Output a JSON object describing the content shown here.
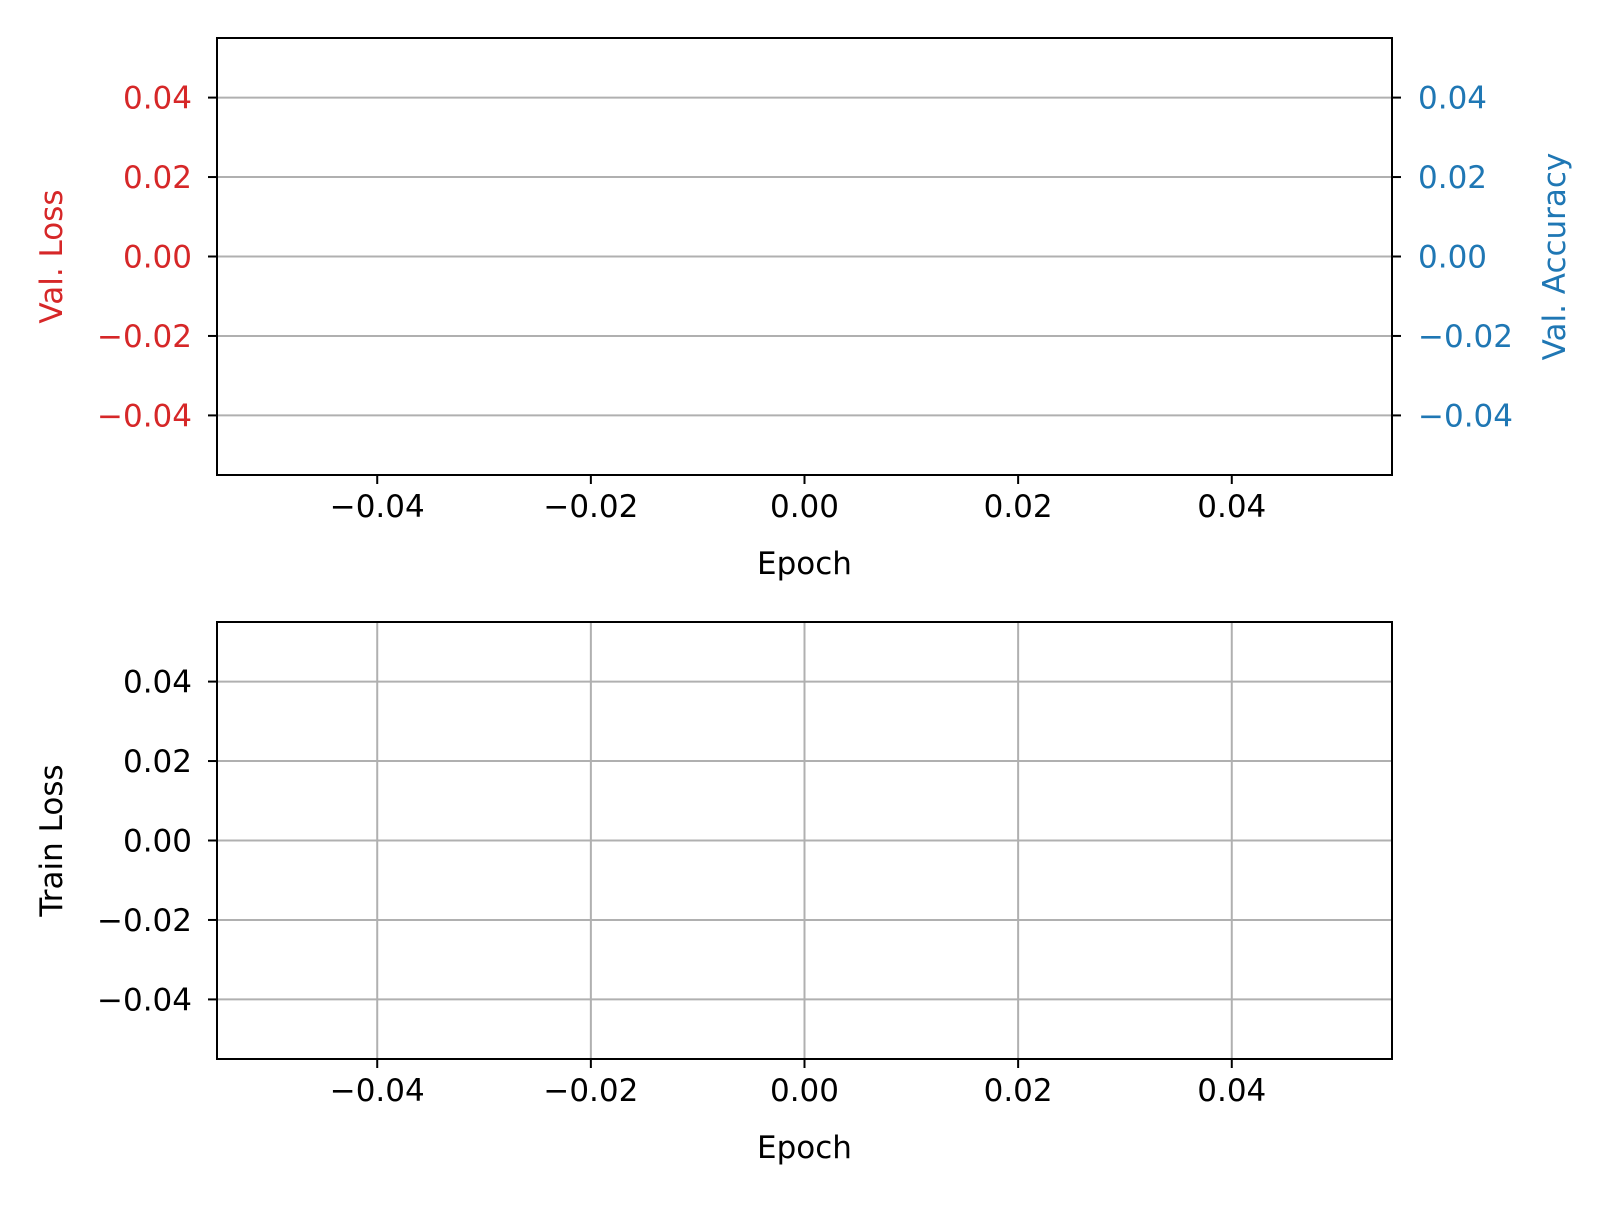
{
  "chart_data": [
    {
      "type": "line",
      "title": "",
      "xlabel": "Epoch",
      "ylabel": "Val. Loss",
      "ylabel_right": "Val. Accuracy",
      "xlim": [
        -0.055,
        0.055
      ],
      "ylim": [
        -0.055,
        0.055
      ],
      "ylim_right": [
        -0.055,
        0.055
      ],
      "x_ticks": [
        -0.04,
        -0.02,
        0.0,
        0.02,
        0.04
      ],
      "x_tick_labels": [
        "−0.04",
        "−0.02",
        "0.00",
        "0.02",
        "0.04"
      ],
      "y_ticks": [
        0.04,
        0.02,
        0.0,
        -0.02,
        -0.04
      ],
      "y_tick_labels": [
        "0.04",
        "0.02",
        "0.00",
        "−0.02",
        "−0.04"
      ],
      "y_ticks_right": [
        0.04,
        0.02,
        0.0,
        -0.02,
        -0.04
      ],
      "y_tick_labels_right": [
        "0.04",
        "0.02",
        "0.00",
        "−0.02",
        "−0.04"
      ],
      "grid": "horizontal",
      "left_axis_color": "#d62728",
      "right_axis_color": "#1f77b4",
      "series": []
    },
    {
      "type": "line",
      "title": "",
      "xlabel": "Epoch",
      "ylabel": "Train Loss",
      "xlim": [
        -0.055,
        0.055
      ],
      "ylim": [
        -0.055,
        0.055
      ],
      "x_ticks": [
        -0.04,
        -0.02,
        0.0,
        0.02,
        0.04
      ],
      "x_tick_labels": [
        "−0.04",
        "−0.02",
        "0.00",
        "0.02",
        "0.04"
      ],
      "y_ticks": [
        0.04,
        0.02,
        0.0,
        -0.02,
        -0.04
      ],
      "y_tick_labels": [
        "0.04",
        "0.02",
        "0.00",
        "−0.02",
        "−0.04"
      ],
      "grid": "both",
      "axis_color": "#000000",
      "series": []
    }
  ]
}
